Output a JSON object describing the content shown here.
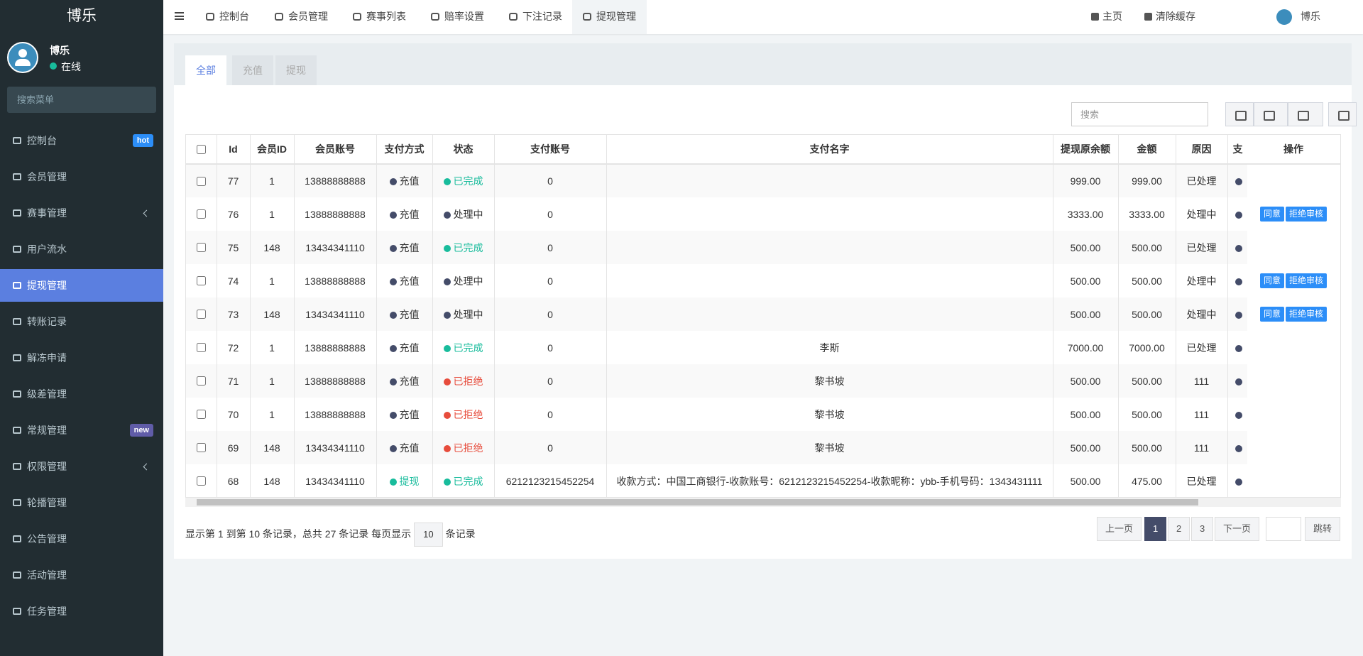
{
  "sidebar": {
    "logo": "博乐",
    "user_name": "博乐",
    "user_status": "在线",
    "search_placeholder": "搜索菜单",
    "active_index": 4,
    "menu": [
      {
        "label": "控制台",
        "badge": "hot",
        "badge_color": "#2c8ef8"
      },
      {
        "label": "会员管理"
      },
      {
        "label": "赛事管理",
        "submenu": true
      },
      {
        "label": "用户流水"
      },
      {
        "label": "提现管理"
      },
      {
        "label": "转账记录"
      },
      {
        "label": "解冻申请"
      },
      {
        "label": "级差管理"
      },
      {
        "label": "常规管理",
        "badge": "new",
        "badge_color": "#605ca8"
      },
      {
        "label": "权限管理",
        "submenu": true
      },
      {
        "label": "轮播管理"
      },
      {
        "label": "公告管理"
      },
      {
        "label": "活动管理"
      },
      {
        "label": "任务管理"
      }
    ]
  },
  "topbar": {
    "tabs": [
      "控制台",
      "会员管理",
      "赛事列表",
      "赔率设置",
      "下注记录",
      "提现管理"
    ],
    "active_tab": 5,
    "links": [
      "主页",
      "清除缓存"
    ],
    "user": "博乐"
  },
  "filter_tabs": [
    "全部",
    "充值",
    "提现"
  ],
  "active_filter": 0,
  "search_placeholder": "搜索",
  "table": {
    "headers": [
      "Id",
      "会员ID",
      "会员账号",
      "支付方式",
      "状态",
      "支付账号",
      "支付名字",
      "提现原余额",
      "金额",
      "原因",
      "支",
      "操作"
    ],
    "rows": [
      {
        "id": "77",
        "member_id": "1",
        "account": "13888888888",
        "method": "充值",
        "method_color": "#444c69",
        "status": "已完成",
        "status_color": "#18bc9c",
        "pay_account": "0",
        "balance": "999.00",
        "amount": "999.00",
        "reason": "已处理"
      },
      {
        "id": "76",
        "member_id": "1",
        "account": "13888888888",
        "method": "充值",
        "method_color": "#444c69",
        "status": "处理中",
        "status_color": "#444c69",
        "pay_account": "0",
        "balance": "3333.00",
        "amount": "3333.00",
        "reason": "处理中",
        "actions": [
          "同意",
          "拒绝审核"
        ]
      },
      {
        "id": "75",
        "member_id": "148",
        "account": "13434341110",
        "method": "充值",
        "method_color": "#444c69",
        "status": "已完成",
        "status_color": "#18bc9c",
        "pay_account": "0",
        "balance": "500.00",
        "amount": "500.00",
        "reason": "已处理"
      },
      {
        "id": "74",
        "member_id": "1",
        "account": "13888888888",
        "method": "充值",
        "method_color": "#444c69",
        "status": "处理中",
        "status_color": "#444c69",
        "pay_account": "0",
        "balance": "500.00",
        "amount": "500.00",
        "reason": "处理中",
        "actions": [
          "同意",
          "拒绝审核"
        ]
      },
      {
        "id": "73",
        "member_id": "148",
        "account": "13434341110",
        "method": "充值",
        "method_color": "#444c69",
        "status": "处理中",
        "status_color": "#444c69",
        "pay_account": "0",
        "balance": "500.00",
        "amount": "500.00",
        "reason": "处理中",
        "actions": [
          "同意",
          "拒绝审核"
        ]
      },
      {
        "id": "72",
        "member_id": "1",
        "account": "13888888888",
        "method": "充值",
        "method_color": "#444c69",
        "status": "已完成",
        "status_color": "#18bc9c",
        "pay_account": "0",
        "pay_name": "李斯",
        "balance": "7000.00",
        "amount": "7000.00",
        "reason": "已处理"
      },
      {
        "id": "71",
        "member_id": "1",
        "account": "13888888888",
        "method": "充值",
        "method_color": "#444c69",
        "status": "已拒绝",
        "status_color": "#e74c3c",
        "pay_account": "0",
        "pay_name": "黎书坡",
        "balance": "500.00",
        "amount": "500.00",
        "reason": "111"
      },
      {
        "id": "70",
        "member_id": "1",
        "account": "13888888888",
        "method": "充值",
        "method_color": "#444c69",
        "status": "已拒绝",
        "status_color": "#e74c3c",
        "pay_account": "0",
        "pay_name": "黎书坡",
        "balance": "500.00",
        "amount": "500.00",
        "reason": "111"
      },
      {
        "id": "69",
        "member_id": "148",
        "account": "13434341110",
        "method": "充值",
        "method_color": "#444c69",
        "status": "已拒绝",
        "status_color": "#e74c3c",
        "pay_account": "0",
        "pay_name": "黎书坡",
        "balance": "500.00",
        "amount": "500.00",
        "reason": "111"
      },
      {
        "id": "68",
        "member_id": "148",
        "account": "13434341110",
        "method": "提现",
        "method_color": "#18bc9c",
        "status": "已完成",
        "status_color": "#18bc9c",
        "pay_account": "6212123215452254",
        "pay_name": "收款方式：中国工商银行-收款账号：6212123215452254-收款昵称：ybb-手机号码：1343431111",
        "balance": "500.00",
        "amount": "475.00",
        "reason": "已处理"
      }
    ]
  },
  "pagination": {
    "summary": "显示第 1 到第 10 条记录，总共 27 条记录 每页显示",
    "page_size": "10",
    "suffix": "条记录",
    "prev": "上一页",
    "pages": [
      "1",
      "2",
      "3"
    ],
    "active_page": 0,
    "next": "下一页",
    "jump": "跳转"
  }
}
